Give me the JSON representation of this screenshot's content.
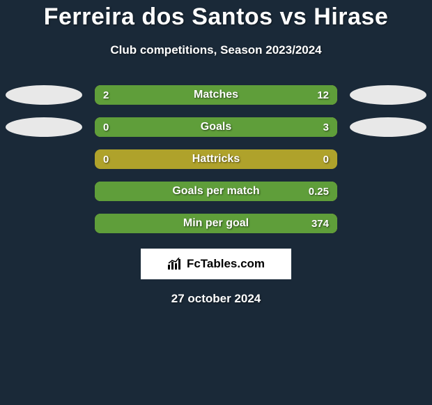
{
  "background_color": "#1a2938",
  "text_color": "#ffffff",
  "title": "Ferreira dos Santos vs Hirase",
  "title_fontsize": 34,
  "subtitle": "Club competitions, Season 2023/2024",
  "subtitle_fontsize": 17,
  "oval_color": "#e8e8e8",
  "bar_bg_color": "#afa22b",
  "bar_fill_color": "#5f9e3a",
  "bar_border_radius": 8,
  "rows": [
    {
      "label": "Matches",
      "left_value": "2",
      "right_value": "12",
      "left_pct": 14.3,
      "right_pct": 85.7,
      "show_ovals": true
    },
    {
      "label": "Goals",
      "left_value": "0",
      "right_value": "3",
      "left_pct": 0,
      "right_pct": 100,
      "show_ovals": true
    },
    {
      "label": "Hattricks",
      "left_value": "0",
      "right_value": "0",
      "left_pct": 0,
      "right_pct": 0,
      "show_ovals": false
    },
    {
      "label": "Goals per match",
      "left_value": "",
      "right_value": "0.25",
      "left_pct": 0,
      "right_pct": 100,
      "show_ovals": false
    },
    {
      "label": "Min per goal",
      "left_value": "",
      "right_value": "374",
      "left_pct": 0,
      "right_pct": 100,
      "show_ovals": false
    }
  ],
  "logo_text": "FcTables.com",
  "date": "27 october 2024"
}
